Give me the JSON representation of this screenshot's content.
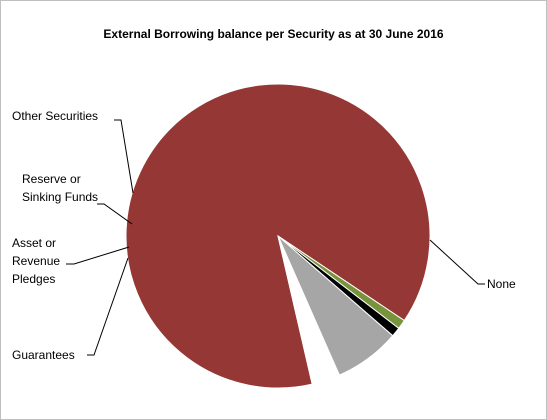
{
  "chart_data": {
    "type": "pie",
    "title": "External Borrowing balance per Security as at 30 June 2016",
    "categories": [
      "None",
      "Guarantees",
      "Asset or Revenue Pledges",
      "Reserve or Sinking Funds",
      "Other Securities"
    ],
    "values": [
      88.0,
      1.0,
      1.0,
      7.0,
      3.0
    ],
    "colors": [
      "#953735",
      "#77933c",
      "#000000",
      "#a6a6a6",
      "#ffffff"
    ],
    "legend": "none",
    "data_labels": "category names with leader lines"
  }
}
